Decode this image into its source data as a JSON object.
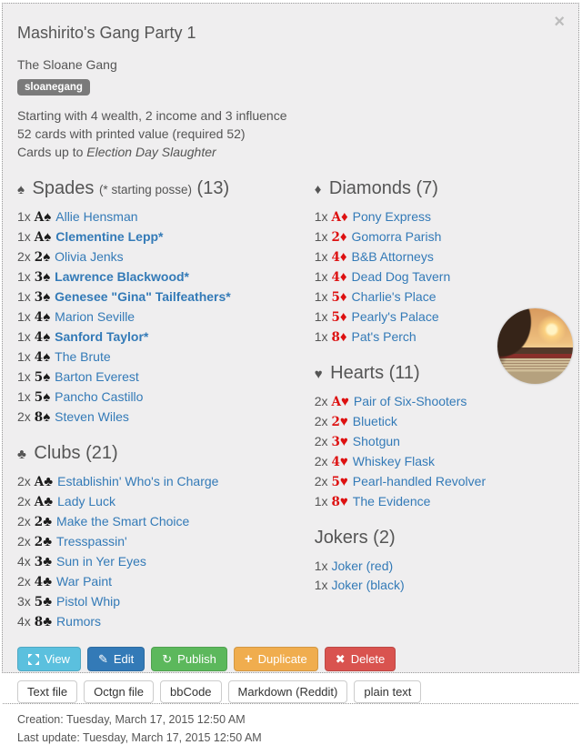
{
  "modal": {
    "title": "Mashirito's Gang Party 1",
    "close_icon": "×",
    "outfit": "The Sloane Gang",
    "badge": "sloanegang",
    "info_lines": [
      "Starting with 4 wealth, 2 income and 3 influence",
      "52 cards with printed value (required 52)"
    ],
    "cards_up_to_prefix": "Cards up to ",
    "cards_up_to_value": "Election Day Slaughter"
  },
  "colors": {
    "black_pip": "#1b1b1b",
    "red_pip": "#dd1111",
    "link": "#337ab7",
    "badge_bg": "#7a7a7a"
  },
  "sections": [
    {
      "id": "spades",
      "suit_symbol": "♠",
      "title": "Spades",
      "subtitle": "(* starting posse)",
      "count": "(13)",
      "pip_color": "#1b1b1b",
      "cards": [
        {
          "qty": "1x",
          "value": "A",
          "suit": "♠",
          "name": "Allie Hensman",
          "bold": false
        },
        {
          "qty": "1x",
          "value": "A",
          "suit": "♠",
          "name": "Clementine Lepp*",
          "bold": true
        },
        {
          "qty": "2x",
          "value": "2",
          "suit": "♠",
          "name": "Olivia Jenks",
          "bold": false
        },
        {
          "qty": "1x",
          "value": "3",
          "suit": "♠",
          "name": "Lawrence Blackwood*",
          "bold": true
        },
        {
          "qty": "1x",
          "value": "3",
          "suit": "♠",
          "name": "Genesee \"Gina\" Tailfeathers*",
          "bold": true
        },
        {
          "qty": "1x",
          "value": "4",
          "suit": "♠",
          "name": "Marion Seville",
          "bold": false
        },
        {
          "qty": "1x",
          "value": "4",
          "suit": "♠",
          "name": "Sanford Taylor*",
          "bold": true
        },
        {
          "qty": "1x",
          "value": "4",
          "suit": "♠",
          "name": "The Brute",
          "bold": false
        },
        {
          "qty": "1x",
          "value": "5",
          "suit": "♠",
          "name": "Barton Everest",
          "bold": false
        },
        {
          "qty": "1x",
          "value": "5",
          "suit": "♠",
          "name": "Pancho Castillo",
          "bold": false
        },
        {
          "qty": "2x",
          "value": "8",
          "suit": "♠",
          "name": "Steven Wiles",
          "bold": false
        }
      ]
    },
    {
      "id": "clubs",
      "suit_symbol": "♣",
      "title": "Clubs",
      "subtitle": "",
      "count": "(21)",
      "pip_color": "#1b1b1b",
      "cards": [
        {
          "qty": "2x",
          "value": "A",
          "suit": "♣",
          "name": "Establishin' Who's in Charge",
          "bold": false
        },
        {
          "qty": "2x",
          "value": "A",
          "suit": "♣",
          "name": "Lady Luck",
          "bold": false
        },
        {
          "qty": "2x",
          "value": "2",
          "suit": "♣",
          "name": "Make the Smart Choice",
          "bold": false
        },
        {
          "qty": "2x",
          "value": "2",
          "suit": "♣",
          "name": "Tresspassin'",
          "bold": false
        },
        {
          "qty": "4x",
          "value": "3",
          "suit": "♣",
          "name": "Sun in Yer Eyes",
          "bold": false
        },
        {
          "qty": "2x",
          "value": "4",
          "suit": "♣",
          "name": "War Paint",
          "bold": false
        },
        {
          "qty": "3x",
          "value": "5",
          "suit": "♣",
          "name": "Pistol Whip",
          "bold": false
        },
        {
          "qty": "4x",
          "value": "8",
          "suit": "♣",
          "name": "Rumors",
          "bold": false
        }
      ]
    },
    {
      "id": "diamonds",
      "suit_symbol": "♦",
      "title": "Diamonds",
      "subtitle": "",
      "count": "(7)",
      "pip_color": "#dd1111",
      "cards": [
        {
          "qty": "1x",
          "value": "A",
          "suit": "♦",
          "name": "Pony Express",
          "bold": false
        },
        {
          "qty": "1x",
          "value": "2",
          "suit": "♦",
          "name": "Gomorra Parish",
          "bold": false
        },
        {
          "qty": "1x",
          "value": "4",
          "suit": "♦",
          "name": "B&B Attorneys",
          "bold": false
        },
        {
          "qty": "1x",
          "value": "4",
          "suit": "♦",
          "name": "Dead Dog Tavern",
          "bold": false
        },
        {
          "qty": "1x",
          "value": "5",
          "suit": "♦",
          "name": "Charlie's Place",
          "bold": false
        },
        {
          "qty": "1x",
          "value": "5",
          "suit": "♦",
          "name": "Pearly's Palace",
          "bold": false
        },
        {
          "qty": "1x",
          "value": "8",
          "suit": "♦",
          "name": "Pat's Perch",
          "bold": false
        }
      ]
    },
    {
      "id": "hearts",
      "suit_symbol": "♥",
      "title": "Hearts",
      "subtitle": "",
      "count": "(11)",
      "pip_color": "#dd1111",
      "cards": [
        {
          "qty": "2x",
          "value": "A",
          "suit": "♥",
          "name": "Pair of Six-Shooters",
          "bold": false
        },
        {
          "qty": "2x",
          "value": "2",
          "suit": "♥",
          "name": "Bluetick",
          "bold": false
        },
        {
          "qty": "2x",
          "value": "3",
          "suit": "♥",
          "name": "Shotgun",
          "bold": false
        },
        {
          "qty": "2x",
          "value": "4",
          "suit": "♥",
          "name": "Whiskey Flask",
          "bold": false
        },
        {
          "qty": "2x",
          "value": "5",
          "suit": "♥",
          "name": "Pearl-handled Revolver",
          "bold": false
        },
        {
          "qty": "1x",
          "value": "8",
          "suit": "♥",
          "name": "The Evidence",
          "bold": false
        }
      ]
    },
    {
      "id": "jokers",
      "suit_symbol": "",
      "title": "Jokers",
      "subtitle": "",
      "count": "(2)",
      "pip_color": "#1b1b1b",
      "cards": [
        {
          "qty": "1x",
          "value": "",
          "suit": "",
          "name": "Joker (red)",
          "bold": false
        },
        {
          "qty": "1x",
          "value": "",
          "suit": "",
          "name": "Joker (black)",
          "bold": false
        }
      ]
    }
  ],
  "actions": [
    {
      "label": "View",
      "icon": "expand-icon",
      "color": "#5bc0de"
    },
    {
      "label": "Edit",
      "icon": "pencil-icon",
      "color": "#337ab7"
    },
    {
      "label": "Publish",
      "icon": "publish-icon",
      "color": "#5cb85c"
    },
    {
      "label": "Duplicate",
      "icon": "plus-icon",
      "color": "#f0ad4e"
    },
    {
      "label": "Delete",
      "icon": "delete-icon",
      "color": "#d9534f"
    }
  ],
  "export_buttons": [
    "Text file",
    "Octgn file",
    "bbCode",
    "Markdown (Reddit)",
    "plain text"
  ],
  "footer": {
    "creation": "Creation: Tuesday, March 17, 2015 12:50 AM",
    "last_update": "Last update: Tuesday, March 17, 2015 12:50 AM"
  }
}
